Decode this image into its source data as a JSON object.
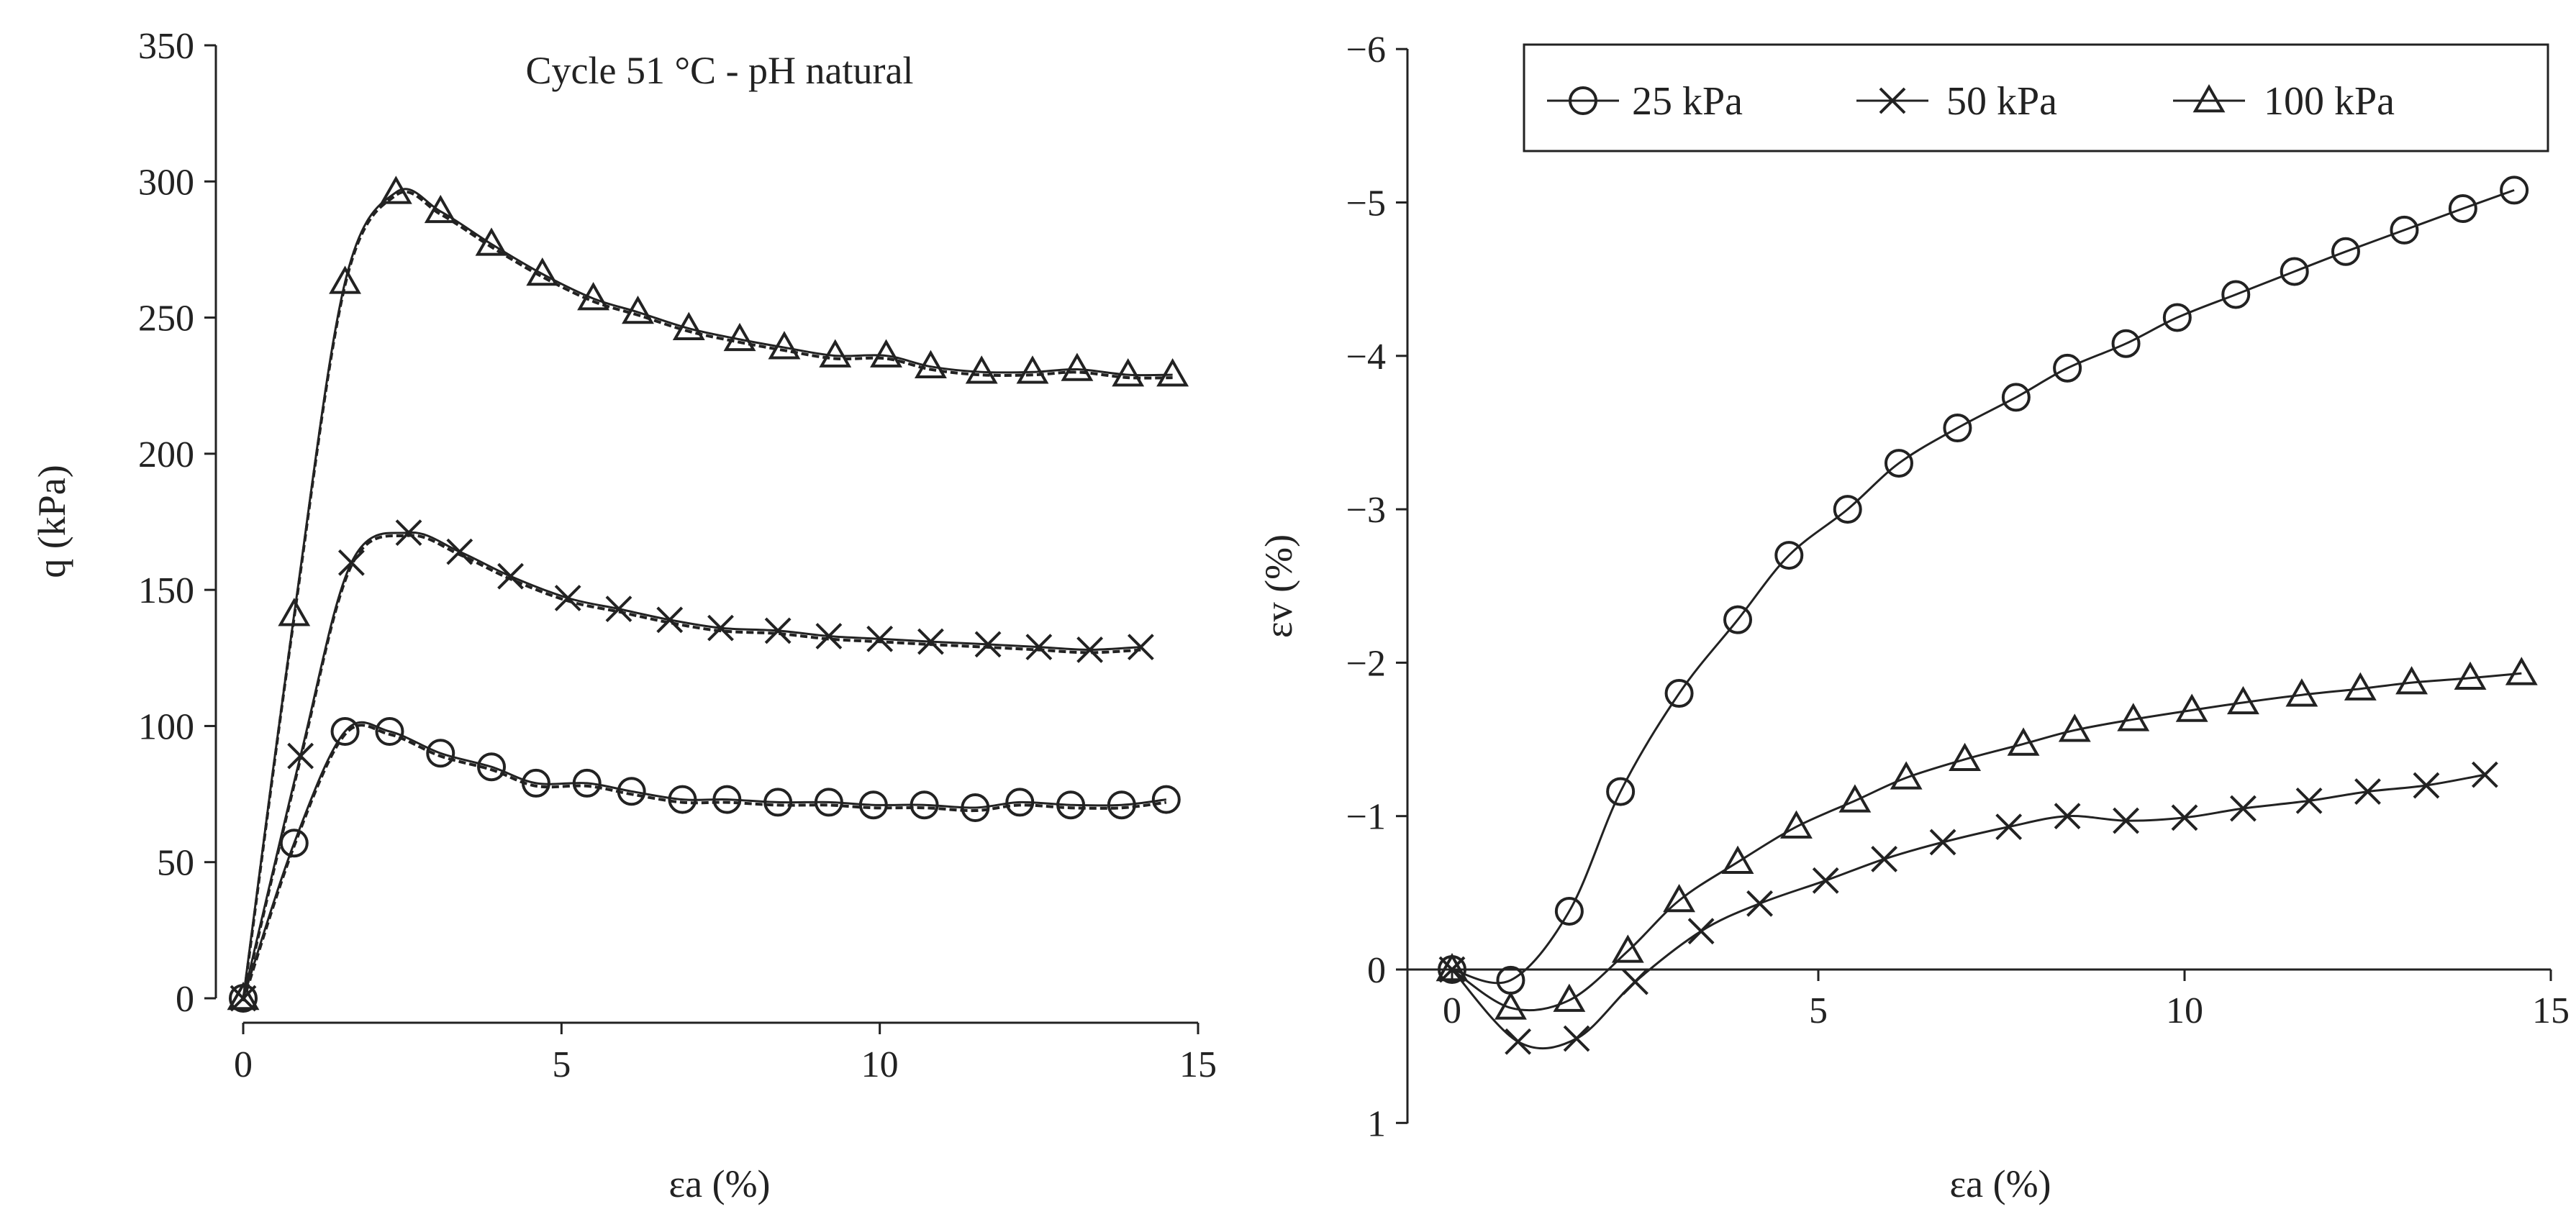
{
  "chart_data": [
    {
      "type": "line",
      "title": "Cycle 51 °C - pH natural",
      "xlabel": "εa (%)",
      "ylabel": "q (kPa)",
      "xlim": [
        0,
        15
      ],
      "ylim": [
        0,
        350
      ],
      "xticks": [
        0,
        5,
        10,
        15
      ],
      "yticks": [
        0,
        50,
        100,
        150,
        200,
        250,
        300,
        350
      ],
      "series": [
        {
          "name": "25 kPa",
          "marker": "circle",
          "x": [
            0,
            0.8,
            1.6,
            2.3,
            3.1,
            3.9,
            4.6,
            5.4,
            6.1,
            6.9,
            7.6,
            8.4,
            9.2,
            9.9,
            10.7,
            11.5,
            12.2,
            13.0,
            13.8,
            14.5
          ],
          "y": [
            0,
            57,
            98,
            98,
            90,
            85,
            79,
            79,
            76,
            73,
            73,
            72,
            72,
            71,
            71,
            70,
            72,
            71,
            71,
            73
          ]
        },
        {
          "name": "50 kPa",
          "marker": "x",
          "x": [
            0,
            0.9,
            1.7,
            2.6,
            3.4,
            4.2,
            5.1,
            5.9,
            6.7,
            7.5,
            8.4,
            9.2,
            10.0,
            10.8,
            11.7,
            12.5,
            13.3,
            14.1
          ],
          "y": [
            0,
            89,
            160,
            171,
            164,
            155,
            147,
            143,
            139,
            136,
            135,
            133,
            132,
            131,
            130,
            129,
            128,
            129
          ]
        },
        {
          "name": "100 kPa",
          "marker": "triangle",
          "x": [
            0,
            0.8,
            1.6,
            2.4,
            3.1,
            3.9,
            4.7,
            5.5,
            6.2,
            7.0,
            7.8,
            8.5,
            9.3,
            10.1,
            10.8,
            11.6,
            12.4,
            13.1,
            13.9,
            14.6
          ],
          "y": [
            0,
            141,
            263,
            296,
            289,
            277,
            266,
            257,
            252,
            246,
            242,
            239,
            236,
            236,
            232,
            230,
            230,
            231,
            229,
            229
          ]
        }
      ]
    },
    {
      "type": "line",
      "title": "",
      "xlabel": "εa (%)",
      "ylabel": "εv (%)",
      "xlim": [
        0,
        15
      ],
      "ylim": [
        1,
        -6
      ],
      "xticks": [
        0,
        5,
        10,
        15
      ],
      "yticks": [
        1,
        0,
        -1,
        -2,
        -3,
        -4,
        -5,
        -6
      ],
      "legend_position": "top",
      "series": [
        {
          "name": "25 kPa",
          "marker": "circle",
          "x": [
            0,
            0.8,
            1.6,
            2.3,
            3.1,
            3.9,
            4.6,
            5.4,
            6.1,
            6.9,
            7.7,
            8.4,
            9.2,
            9.9,
            10.7,
            11.5,
            12.2,
            13.0,
            13.8,
            14.5
          ],
          "y": [
            0,
            0.07,
            -0.38,
            -1.16,
            -1.8,
            -2.28,
            -2.7,
            -3.0,
            -3.3,
            -3.53,
            -3.73,
            -3.92,
            -4.08,
            -4.25,
            -4.4,
            -4.55,
            -4.68,
            -4.82,
            -4.96,
            -5.08
          ]
        },
        {
          "name": "50 kPa",
          "marker": "x",
          "x": [
            0,
            0.9,
            1.7,
            2.5,
            3.4,
            4.2,
            5.1,
            5.9,
            6.7,
            7.6,
            8.4,
            9.2,
            10.0,
            10.8,
            11.7,
            12.5,
            13.3,
            14.1
          ],
          "y": [
            0,
            0.47,
            0.45,
            0.08,
            -0.25,
            -0.43,
            -0.58,
            -0.72,
            -0.83,
            -0.93,
            -1.0,
            -0.97,
            -0.99,
            -1.05,
            -1.1,
            -1.16,
            -1.2,
            -1.27
          ]
        },
        {
          "name": "100 kPa",
          "marker": "triangle",
          "x": [
            0,
            0.8,
            1.6,
            2.4,
            3.1,
            3.9,
            4.7,
            5.5,
            6.2,
            7.0,
            7.8,
            8.5,
            9.3,
            10.1,
            10.8,
            11.6,
            12.4,
            13.1,
            13.9,
            14.6
          ],
          "y": [
            0,
            0.25,
            0.2,
            -0.12,
            -0.45,
            -0.7,
            -0.93,
            -1.1,
            -1.25,
            -1.37,
            -1.47,
            -1.56,
            -1.63,
            -1.69,
            -1.74,
            -1.79,
            -1.83,
            -1.87,
            -1.9,
            -1.93
          ]
        }
      ]
    }
  ]
}
